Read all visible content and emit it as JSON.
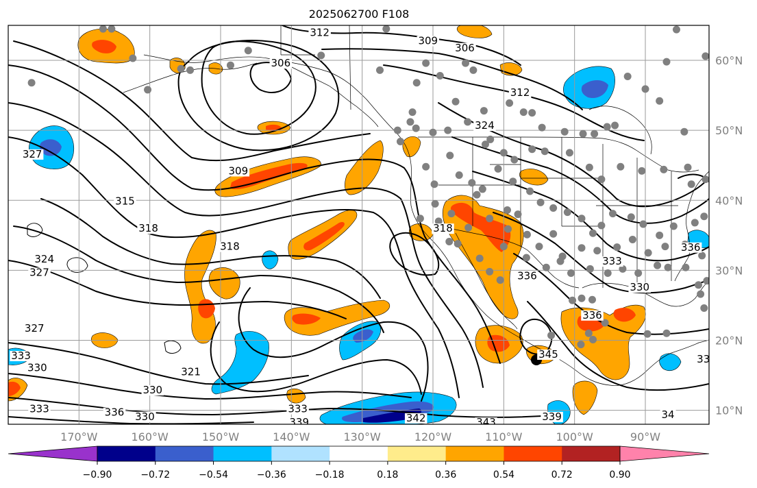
{
  "title": "2025062700 F108",
  "map": {
    "projection": "cylindrical",
    "lon_range": [
      -180,
      -81
    ],
    "lat_range": [
      8,
      65
    ],
    "lat_ticks": [
      {
        "value": 10,
        "label": "10°N"
      },
      {
        "value": 20,
        "label": "20°N"
      },
      {
        "value": 30,
        "label": "30°N"
      },
      {
        "value": 40,
        "label": "40°N"
      },
      {
        "value": 50,
        "label": "50°N"
      },
      {
        "value": 60,
        "label": "60°N"
      }
    ],
    "lon_ticks": [
      {
        "value": -170,
        "label": "170°W"
      },
      {
        "value": -160,
        "label": "160°W"
      },
      {
        "value": -150,
        "label": "150°W"
      },
      {
        "value": -140,
        "label": "140°W"
      },
      {
        "value": -130,
        "label": "130°W"
      },
      {
        "value": -120,
        "label": "120°W"
      },
      {
        "value": -110,
        "label": "110°W"
      },
      {
        "value": -100,
        "label": "100°W"
      },
      {
        "value": -90,
        "label": "90°W"
      }
    ],
    "colors": {
      "land_outline": "#000000",
      "grid": "#9a9a9a",
      "station_marker": "#808080",
      "contour": "#000000"
    }
  },
  "colorbar": {
    "levels": [
      -0.9,
      -0.72,
      -0.54,
      -0.36,
      -0.18,
      0.18,
      0.36,
      0.54,
      0.72,
      0.9
    ],
    "tick_labels": [
      "−0.90",
      "−0.72",
      "−0.54",
      "−0.36",
      "−0.18",
      "0.18",
      "0.36",
      "0.54",
      "0.72",
      "0.90"
    ],
    "colors": [
      "#9932cc",
      "#00008b",
      "#3a5fcd",
      "#00bfff",
      "#b0e2ff",
      "#ffffff",
      "#ffec8b",
      "#ffa500",
      "#ff4500",
      "#b22222",
      "#ff82ab"
    ],
    "extend": "both"
  },
  "contour_labels": [
    {
      "text": "312",
      "lon": -136,
      "lat": 63.6
    },
    {
      "text": "309",
      "lon": -120.7,
      "lat": 62.4
    },
    {
      "text": "306",
      "lon": -115.5,
      "lat": 61.4
    },
    {
      "text": "306",
      "lon": -141.5,
      "lat": 59.2
    },
    {
      "text": "312",
      "lon": -107.7,
      "lat": 55.0
    },
    {
      "text": "324",
      "lon": -112.7,
      "lat": 50.3
    },
    {
      "text": "327",
      "lon": -176.6,
      "lat": 46.2
    },
    {
      "text": "309",
      "lon": -147.5,
      "lat": 43.8
    },
    {
      "text": "315",
      "lon": -163.5,
      "lat": 39.5
    },
    {
      "text": "318",
      "lon": -160.2,
      "lat": 35.6
    },
    {
      "text": "318",
      "lon": -148.7,
      "lat": 33.0
    },
    {
      "text": "318",
      "lon": -118.6,
      "lat": 35.6
    },
    {
      "text": "324",
      "lon": -174.9,
      "lat": 31.2
    },
    {
      "text": "327",
      "lon": -175.6,
      "lat": 29.3
    },
    {
      "text": "336",
      "lon": -106.7,
      "lat": 28.8
    },
    {
      "text": "333",
      "lon": -94.7,
      "lat": 30.9
    },
    {
      "text": "336",
      "lon": -83.6,
      "lat": 32.9
    },
    {
      "text": "330",
      "lon": -90.8,
      "lat": 27.2
    },
    {
      "text": "327",
      "lon": -176.3,
      "lat": 21.3
    },
    {
      "text": "336",
      "lon": -97.5,
      "lat": 23.2
    },
    {
      "text": "333",
      "lon": -178.2,
      "lat": 17.4
    },
    {
      "text": "330",
      "lon": -175.9,
      "lat": 15.7
    },
    {
      "text": "321",
      "lon": -154.2,
      "lat": 15.1
    },
    {
      "text": "330",
      "lon": -159.6,
      "lat": 12.5
    },
    {
      "text": "333",
      "lon": -175.6,
      "lat": 9.8
    },
    {
      "text": "336",
      "lon": -165.0,
      "lat": 9.3
    },
    {
      "text": "330",
      "lon": -160.7,
      "lat": 8.7
    },
    {
      "text": "333",
      "lon": -139.1,
      "lat": 9.8
    },
    {
      "text": "339",
      "lon": -138.9,
      "lat": 7.9
    },
    {
      "text": "342",
      "lon": -122.4,
      "lat": 8.5
    },
    {
      "text": "343",
      "lon": -112.5,
      "lat": 7.9
    },
    {
      "text": "339",
      "lon": -103.2,
      "lat": 8.7
    },
    {
      "text": "33",
      "lon": -81.8,
      "lat": 16.9
    },
    {
      "text": "345",
      "lon": -103.7,
      "lat": 17.6
    },
    {
      "text": "34",
      "lon": -86.8,
      "lat": 9.0
    }
  ],
  "stations": [
    [
      -165.4,
      64.5
    ],
    [
      -162.4,
      60.3
    ],
    [
      -166.6,
      64.5
    ],
    [
      -160.3,
      55.8
    ],
    [
      -176.7,
      56.8
    ],
    [
      -155.6,
      58.8
    ],
    [
      -154.3,
      58.6
    ],
    [
      -148.6,
      59.3
    ],
    [
      -146.1,
      61.4
    ],
    [
      -135.8,
      60.7
    ],
    [
      -127.5,
      58.6
    ],
    [
      -122.3,
      56.8
    ],
    [
      -119.0,
      57.8
    ],
    [
      -121.0,
      59.6
    ],
    [
      -126.6,
      64.5
    ],
    [
      -115.4,
      59.6
    ],
    [
      -114.3,
      58.6
    ],
    [
      -112.8,
      52.8
    ],
    [
      -116.8,
      54.1
    ],
    [
      -115.1,
      51.2
    ],
    [
      -111.9,
      48.7
    ],
    [
      -109.2,
      53.9
    ],
    [
      -107.2,
      52.6
    ],
    [
      -106.0,
      52.5
    ],
    [
      -104.6,
      50.4
    ],
    [
      -101.4,
      49.8
    ],
    [
      -98.8,
      49.5
    ],
    [
      -97.2,
      49.5
    ],
    [
      -95.4,
      50.5
    ],
    [
      -94.3,
      50.7
    ],
    [
      -92.5,
      57.7
    ],
    [
      -90.0,
      55.9
    ],
    [
      -84.5,
      49.8
    ],
    [
      -85.6,
      64.4
    ],
    [
      -81.5,
      60.6
    ],
    [
      -87.0,
      59.8
    ],
    [
      -88.0,
      54.2
    ],
    [
      -123.2,
      51.2
    ],
    [
      -122.4,
      50.3
    ],
    [
      -120.0,
      49.7
    ],
    [
      -117.9,
      50.0
    ],
    [
      -112.6,
      48.0
    ],
    [
      -110.0,
      46.8
    ],
    [
      -108.5,
      45.8
    ],
    [
      -106.0,
      47.3
    ],
    [
      -104.2,
      47.0
    ],
    [
      -100.7,
      46.8
    ],
    [
      -97.9,
      44.7
    ],
    [
      -96.2,
      43.0
    ],
    [
      -93.5,
      44.8
    ],
    [
      -90.5,
      44.2
    ],
    [
      -87.4,
      44.4
    ],
    [
      -84.0,
      44.7
    ],
    [
      -83.5,
      42.3
    ],
    [
      -81.5,
      43.0
    ],
    [
      -121.0,
      44.8
    ],
    [
      -119.8,
      42.3
    ],
    [
      -116.3,
      43.6
    ],
    [
      -114.5,
      42.5
    ],
    [
      -113.0,
      41.6
    ],
    [
      -110.8,
      44.5
    ],
    [
      -108.7,
      42.7
    ],
    [
      -106.3,
      41.3
    ],
    [
      -104.8,
      39.7
    ],
    [
      -103.0,
      38.9
    ],
    [
      -101.0,
      38.3
    ],
    [
      -99.0,
      37.4
    ],
    [
      -97.4,
      35.3
    ],
    [
      -96.2,
      36.4
    ],
    [
      -94.6,
      38.1
    ],
    [
      -92.0,
      37.6
    ],
    [
      -90.3,
      36.6
    ],
    [
      -88.0,
      35.0
    ],
    [
      -86.0,
      36.3
    ],
    [
      -83.0,
      36.8
    ],
    [
      -81.7,
      37.7
    ],
    [
      -119.7,
      39.5
    ],
    [
      -117.4,
      38.1
    ],
    [
      -115.0,
      36.1
    ],
    [
      -112.0,
      37.4
    ],
    [
      -109.5,
      38.6
    ],
    [
      -106.7,
      35.1
    ],
    [
      -105.0,
      33.4
    ],
    [
      -103.0,
      35.2
    ],
    [
      -101.7,
      32.0
    ],
    [
      -99.0,
      33.2
    ],
    [
      -96.8,
      32.8
    ],
    [
      -94.0,
      33.3
    ],
    [
      -91.8,
      34.4
    ],
    [
      -89.6,
      32.5
    ],
    [
      -87.2,
      33.4
    ],
    [
      -84.4,
      33.7
    ],
    [
      -82.0,
      32.1
    ],
    [
      -106.8,
      31.8
    ],
    [
      -104.0,
      30.4
    ],
    [
      -102.0,
      31.3
    ],
    [
      -100.5,
      29.6
    ],
    [
      -97.8,
      30.2
    ],
    [
      -95.3,
      29.6
    ],
    [
      -93.2,
      30.2
    ],
    [
      -91.0,
      29.6
    ],
    [
      -88.3,
      30.7
    ],
    [
      -86.8,
      30.4
    ],
    [
      -84.3,
      30.4
    ],
    [
      -82.5,
      27.9
    ],
    [
      -81.3,
      28.5
    ],
    [
      -82.2,
      26.6
    ],
    [
      -81.7,
      24.6
    ],
    [
      -99.0,
      26.0
    ],
    [
      -100.3,
      25.7
    ],
    [
      -97.5,
      25.8
    ],
    [
      -98.0,
      21.0
    ],
    [
      -87.0,
      21.0
    ],
    [
      -89.7,
      20.9
    ],
    [
      -95.7,
      22.5
    ],
    [
      -97.4,
      20.1
    ],
    [
      -104.4,
      17.9
    ],
    [
      -99.1,
      19.4
    ],
    [
      -103.3,
      20.7
    ],
    [
      -121.8,
      37.4
    ],
    [
      -117.7,
      34.1
    ],
    [
      -119.2,
      37.0
    ],
    [
      -116.5,
      33.8
    ],
    [
      -122.9,
      52.6
    ],
    [
      -124.6,
      48.4
    ],
    [
      -125.0,
      50.0
    ],
    [
      -117.6,
      46.4
    ],
    [
      -113.8,
      40.8
    ],
    [
      -108.0,
      38.0
    ],
    [
      -110.0,
      33.4
    ],
    [
      -109.4,
      35.9
    ],
    [
      -113.4,
      31.7
    ],
    [
      -112.0,
      29.8
    ],
    [
      -110.5,
      28.6
    ]
  ]
}
